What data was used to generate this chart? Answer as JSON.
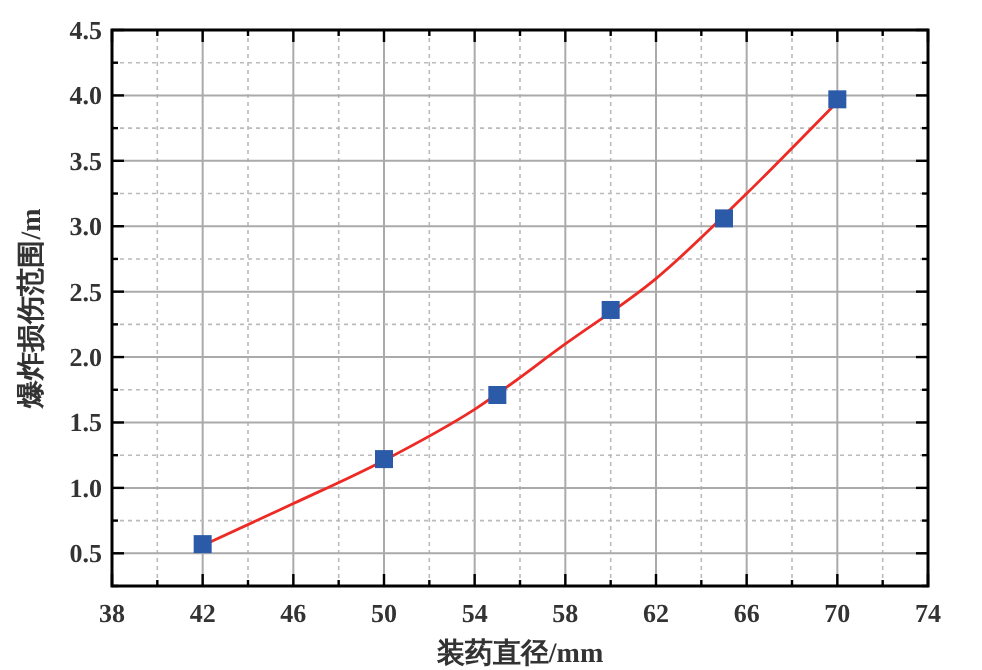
{
  "chart_data": {
    "type": "scatter",
    "xlabel": "装药直径/mm",
    "ylabel": "爆炸损伤范围/m",
    "series": [
      {
        "type": "line",
        "color": "#ee2a24",
        "x": [
          42,
          46,
          50,
          54,
          58,
          62,
          66,
          70
        ],
        "values": [
          0.56,
          0.88,
          1.21,
          1.6,
          2.1,
          2.6,
          3.25,
          3.95
        ],
        "marker": "none"
      },
      {
        "color": "#2a5aa8",
        "x": [
          42,
          50,
          55,
          60,
          65,
          70
        ],
        "values": [
          0.57,
          1.22,
          1.71,
          2.36,
          3.06,
          3.97
        ],
        "marker": "square"
      }
    ],
    "xlim": [
      38,
      74
    ],
    "xticks": [
      38,
      {
        "value": 40,
        "label": null
      },
      42,
      {
        "value": 44,
        "label": null
      },
      46,
      {
        "value": 48,
        "label": null
      },
      50,
      {
        "value": 52,
        "label": null
      },
      54,
      {
        "value": 56,
        "label": null
      },
      58,
      {
        "value": 60,
        "label": null
      },
      62,
      {
        "value": 64,
        "label": null
      },
      66,
      {
        "value": 68,
        "label": null
      },
      70,
      {
        "value": 72,
        "label": null
      },
      74
    ],
    "ylim": [
      0.25,
      4.5
    ],
    "yticks": [
      {
        "value": 0.25,
        "label": null
      },
      {
        "value": 0.5,
        "label": "0.5"
      },
      {
        "value": 0.75,
        "label": null
      },
      {
        "value": 1,
        "label": "1.0"
      },
      {
        "value": 1.25,
        "label": null
      },
      {
        "value": 1.5,
        "label": "1.5"
      },
      {
        "value": 1.75,
        "label": null
      },
      {
        "value": 2,
        "label": "2.0"
      },
      {
        "value": 2.25,
        "label": null
      },
      {
        "value": 2.5,
        "label": "2.5"
      },
      {
        "value": 2.75,
        "label": null
      },
      {
        "value": 3,
        "label": "3.0"
      },
      {
        "value": 3.25,
        "label": null
      },
      {
        "value": 3.5,
        "label": "3.5"
      },
      {
        "value": 3.75,
        "label": null
      },
      {
        "value": 4,
        "label": "4.0"
      },
      {
        "value": 4.25,
        "label": null
      },
      {
        "value": 4.5,
        "label": "4.5"
      }
    ],
    "grid": true
  }
}
